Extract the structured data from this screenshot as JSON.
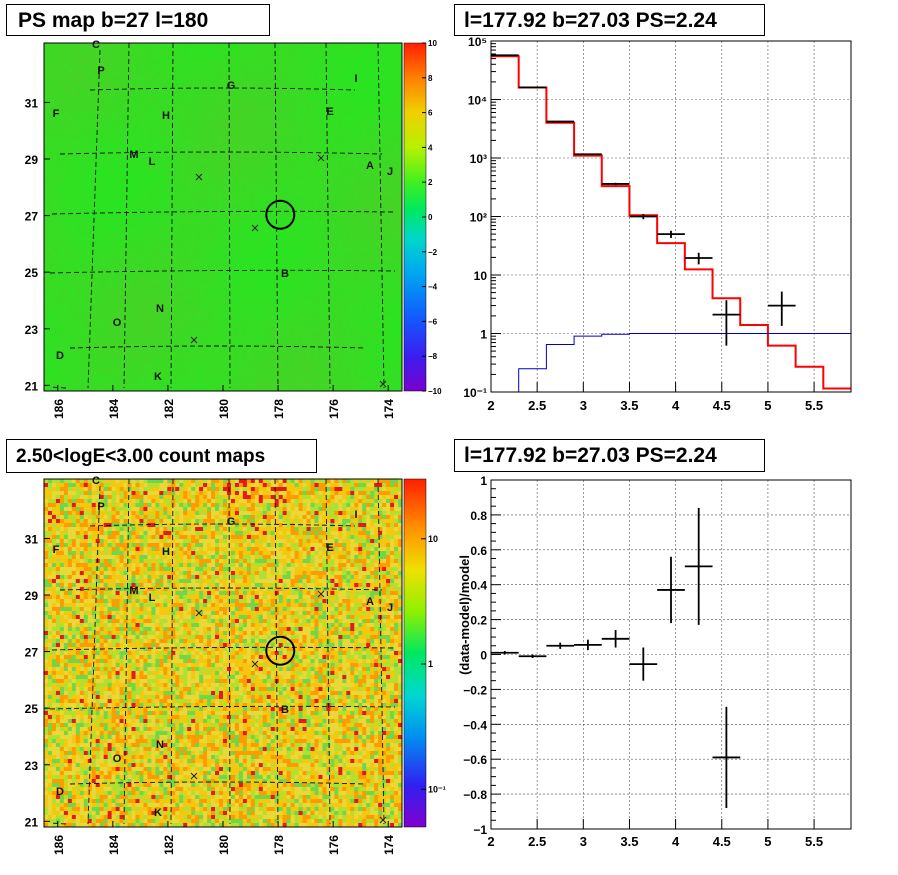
{
  "panels": {
    "ps_map": {
      "title": "PS map b=27 l=180",
      "x_ticks": [
        "186",
        "184",
        "182",
        "180",
        "178",
        "176",
        "174"
      ],
      "y_ticks": [
        "31",
        "29",
        "27",
        "25",
        "23",
        "21"
      ],
      "colorbar_ticks": [
        "10",
        "8",
        "6",
        "4",
        "2",
        "0",
        "−2",
        "−4",
        "−6",
        "−8",
        "−10"
      ],
      "colorbar_range": [
        -10,
        10
      ],
      "labels": [
        "C",
        "P",
        "I",
        "G",
        "F",
        "H",
        "E",
        "M",
        "L",
        "A",
        "J",
        "B",
        "N",
        "O",
        "D",
        "K"
      ]
    },
    "count_map": {
      "title": "2.50<logE<3.00 count maps",
      "x_ticks": [
        "186",
        "184",
        "182",
        "180",
        "178",
        "176",
        "174"
      ],
      "y_ticks": [
        "31",
        "29",
        "27",
        "25",
        "23",
        "21"
      ],
      "colorbar_ticks": [
        "10",
        "1",
        "10⁻¹"
      ],
      "colorbar_scale": "log",
      "labels": [
        "C",
        "P",
        "I",
        "G",
        "F",
        "H",
        "E",
        "M",
        "L",
        "A",
        "J",
        "B",
        "N",
        "O",
        "D",
        "K"
      ]
    },
    "spectrum": {
      "title": "l=177.92 b=27.03 PS=2.24"
    },
    "residual": {
      "title": "l=177.92 b=27.03 PS=2.24"
    }
  },
  "chart_data": [
    {
      "type": "heatmap",
      "title": "PS map b=27 l=180",
      "xlim": [
        186.5,
        173.5
      ],
      "ylim": [
        20.8,
        33.1
      ],
      "x_ticks": [
        186,
        184,
        182,
        180,
        178,
        176,
        174
      ],
      "y_ticks": [
        31,
        29,
        27,
        25,
        23,
        21
      ],
      "z_range": [
        -10,
        10
      ],
      "dominant_value": 0,
      "source_circle": {
        "l": 177.92,
        "b": 27.03
      },
      "region_labels": [
        "C",
        "P",
        "I",
        "G",
        "F",
        "H",
        "E",
        "M",
        "L",
        "A",
        "J",
        "B",
        "N",
        "O",
        "D",
        "K"
      ]
    },
    {
      "type": "heatmap",
      "title": "2.50<logE<3.00 count maps",
      "xlim": [
        186.5,
        173.5
      ],
      "ylim": [
        20.8,
        33.1
      ],
      "x_ticks": [
        186,
        184,
        182,
        180,
        178,
        176,
        174
      ],
      "y_ticks": [
        31,
        29,
        27,
        25,
        23,
        21
      ],
      "z_scale": "log",
      "z_range": [
        0.05,
        30
      ],
      "source_circle": {
        "l": 177.92,
        "b": 27.03
      },
      "region_labels": [
        "C",
        "P",
        "I",
        "G",
        "F",
        "H",
        "E",
        "M",
        "L",
        "A",
        "J",
        "B",
        "N",
        "O",
        "D",
        "K"
      ]
    },
    {
      "type": "line",
      "title": "l=177.92 b=27.03 PS=2.24",
      "y_scale": "log",
      "xlim": [
        2.0,
        5.9
      ],
      "ylim": [
        0.1,
        100000
      ],
      "x_ticks": [
        2,
        2.5,
        3,
        3.5,
        4,
        4.5,
        5,
        5.5
      ],
      "y_tick_labels": [
        "10⁻¹",
        "1",
        "10",
        "10²",
        "10³",
        "10⁴",
        "10⁵"
      ],
      "bin_edges": [
        2.0,
        2.3,
        2.6,
        2.9,
        3.2,
        3.5,
        3.8,
        4.1,
        4.4,
        4.7,
        5.0,
        5.3,
        5.6,
        5.9
      ],
      "series": [
        {
          "color": "#ff0000",
          "type": "step",
          "values": [
            55000,
            16000,
            4000,
            1100,
            330,
            105,
            35,
            12.5,
            4.0,
            1.4,
            0.62,
            0.27,
            0.115
          ]
        },
        {
          "color": "#0000cc",
          "type": "step",
          "values": [
            0.07,
            0.25,
            0.65,
            0.9,
            0.97,
            1.0,
            1.0,
            1.0,
            1.0,
            1.0,
            1.0,
            1.0,
            1.0
          ]
        },
        {
          "color": "#000000",
          "type": "errorbar",
          "points": [
            {
              "x": 2.15,
              "y": 57000,
              "xerr": 0.15,
              "ylo": 56500,
              "yhi": 57500
            },
            {
              "x": 2.45,
              "y": 16100,
              "xerr": 0.15,
              "ylo": 15950,
              "yhi": 16250
            },
            {
              "x": 2.75,
              "y": 4200,
              "xerr": 0.15,
              "ylo": 4130,
              "yhi": 4270
            },
            {
              "x": 3.05,
              "y": 1160,
              "xerr": 0.15,
              "ylo": 1125,
              "yhi": 1195
            },
            {
              "x": 3.35,
              "y": 360,
              "xerr": 0.15,
              "ylo": 342,
              "yhi": 378
            },
            {
              "x": 3.65,
              "y": 100,
              "xerr": 0.15,
              "ylo": 90,
              "yhi": 110
            },
            {
              "x": 3.95,
              "y": 50,
              "xerr": 0.15,
              "ylo": 43,
              "yhi": 57
            },
            {
              "x": 4.25,
              "y": 19.5,
              "xerr": 0.15,
              "ylo": 15.2,
              "yhi": 24
            },
            {
              "x": 4.55,
              "y": 2.1,
              "xerr": 0.15,
              "ylo": 0.62,
              "yhi": 3.7
            },
            {
              "x": 5.15,
              "y": 3.0,
              "xerr": 0.15,
              "ylo": 1.35,
              "yhi": 5.2
            }
          ]
        }
      ]
    },
    {
      "type": "scatter",
      "title": "l=177.92 b=27.03 PS=2.24",
      "ylabel": "(data-model)/model",
      "xlim": [
        2.0,
        5.9
      ],
      "ylim": [
        -1,
        1
      ],
      "x_ticks": [
        2,
        2.5,
        3,
        3.5,
        4,
        4.5,
        5,
        5.5
      ],
      "y_ticks": [
        -1,
        -0.8,
        -0.6,
        -0.4,
        -0.2,
        0,
        0.2,
        0.4,
        0.6,
        0.8,
        1
      ],
      "x_tick_labels": [
        "2",
        "2.5",
        "3",
        "3.5",
        "4",
        "4.5",
        "5",
        "5.5"
      ],
      "y_tick_labels": [
        "−1",
        "−0.8",
        "−0.6",
        "−0.4",
        "−0.2",
        "0",
        "0.2",
        "0.4",
        "0.6",
        "0.8",
        "1"
      ],
      "series": [
        {
          "color": "#000000",
          "type": "errorbar",
          "points": [
            {
              "x": 2.15,
              "y": 0.01,
              "xerr": 0.15,
              "yerr": 0.01
            },
            {
              "x": 2.45,
              "y": -0.01,
              "xerr": 0.15,
              "yerr": 0.01
            },
            {
              "x": 2.75,
              "y": 0.05,
              "xerr": 0.15,
              "yerr": 0.018
            },
            {
              "x": 3.05,
              "y": 0.055,
              "xerr": 0.15,
              "yerr": 0.03
            },
            {
              "x": 3.35,
              "y": 0.09,
              "xerr": 0.15,
              "yerr": 0.05
            },
            {
              "x": 3.65,
              "y": -0.055,
              "xerr": 0.15,
              "yerr": 0.095
            },
            {
              "x": 3.95,
              "y": 0.37,
              "xerr": 0.15,
              "yerr": 0.19
            },
            {
              "x": 4.25,
              "y": 0.505,
              "xerr": 0.15,
              "yerr": 0.335
            },
            {
              "x": 4.55,
              "y": -0.59,
              "xerr": 0.15,
              "yerr": 0.29
            }
          ]
        }
      ]
    }
  ]
}
